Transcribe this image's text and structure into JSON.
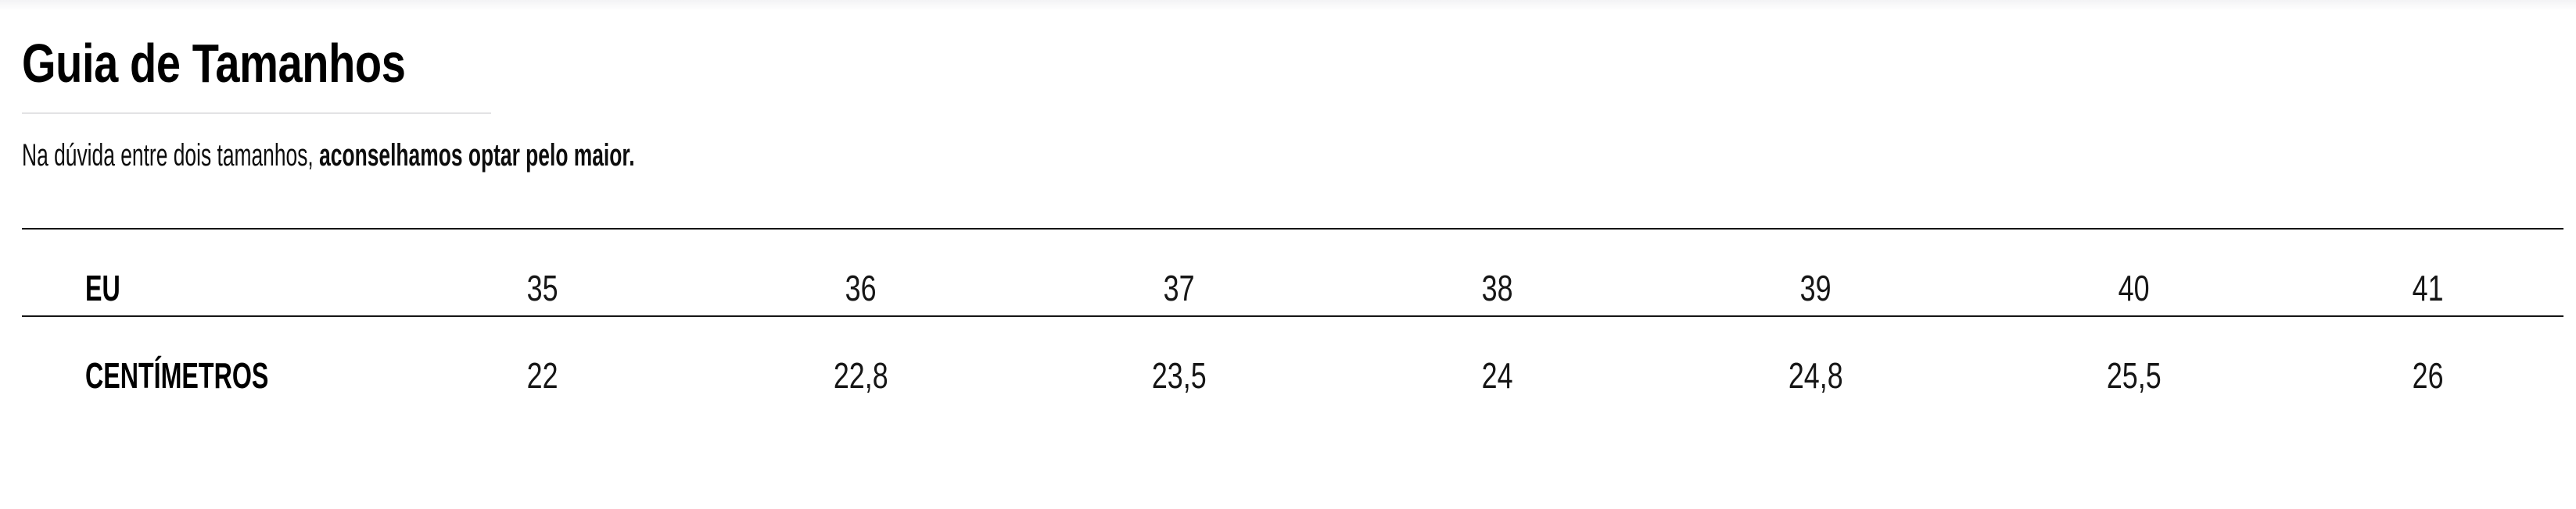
{
  "page": {
    "title": "Guia de Tamanhos",
    "note_regular": "Na dúvida entre dois tamanhos, ",
    "note_bold": "aconselhamos optar pelo maior."
  },
  "size_table": {
    "rows": [
      {
        "label": "EU",
        "values": [
          "35",
          "36",
          "37",
          "38",
          "39",
          "40",
          "41"
        ]
      },
      {
        "label": "CENTÍMETROS",
        "values": [
          "22",
          "22,8",
          "23,5",
          "24",
          "24,8",
          "25,5",
          "26"
        ]
      }
    ]
  },
  "colors": {
    "background": "#ffffff",
    "text": "#000000",
    "table_rule": "#151515",
    "title_divider": "#e2e2e4",
    "top_shade": "#f3f3f5"
  }
}
